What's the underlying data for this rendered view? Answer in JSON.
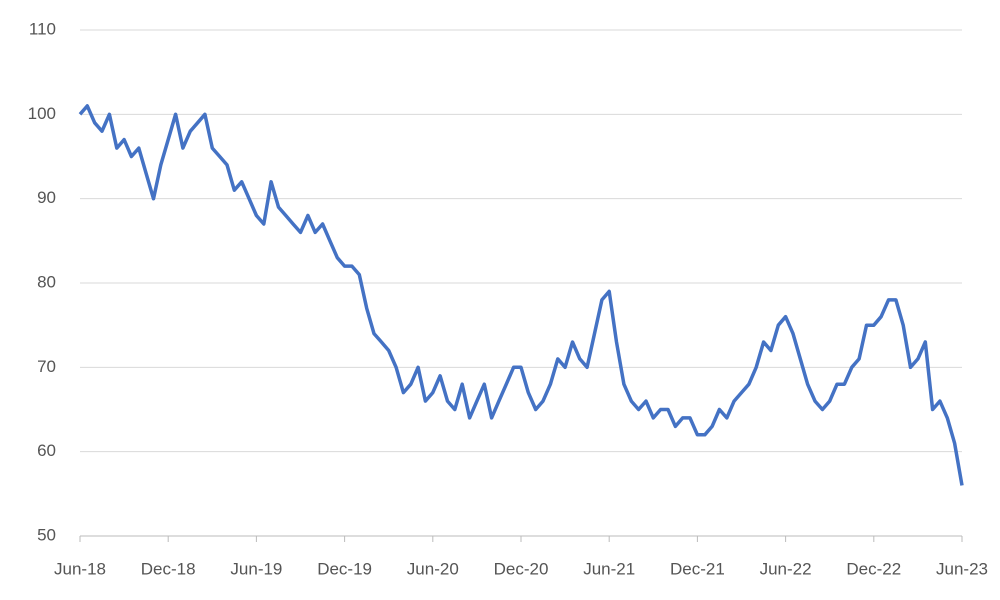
{
  "chart_data": {
    "type": "line",
    "categories": [
      "Jun-18",
      null,
      null,
      null,
      null,
      null,
      null,
      null,
      null,
      null,
      null,
      null,
      "Dec-18",
      null,
      null,
      null,
      null,
      null,
      null,
      null,
      null,
      null,
      null,
      null,
      "Jun-19",
      null,
      null,
      null,
      null,
      null,
      null,
      null,
      null,
      null,
      null,
      null,
      "Dec-19",
      null,
      null,
      null,
      null,
      null,
      null,
      null,
      null,
      null,
      null,
      null,
      "Jun-20",
      null,
      null,
      null,
      null,
      null,
      null,
      null,
      null,
      null,
      null,
      null,
      "Dec-20",
      null,
      null,
      null,
      null,
      null,
      null,
      null,
      null,
      null,
      null,
      null,
      "Jun-21",
      null,
      null,
      null,
      null,
      null,
      null,
      null,
      null,
      null,
      null,
      null,
      "Dec-21",
      null,
      null,
      null,
      null,
      null,
      null,
      null,
      null,
      null,
      null,
      null,
      "Jun-22",
      null,
      null,
      null,
      null,
      null,
      null,
      null,
      null,
      null,
      null,
      null,
      "Dec-22",
      null,
      null,
      null,
      null,
      null,
      null,
      null,
      null,
      null,
      null,
      null,
      "Jun-23"
    ],
    "values": [
      100,
      101,
      99,
      98,
      100,
      96,
      97,
      95,
      96,
      93,
      90,
      94,
      97,
      100,
      96,
      98,
      99,
      100,
      96,
      95,
      94,
      91,
      92,
      90,
      88,
      87,
      92,
      89,
      88,
      87,
      86,
      88,
      86,
      87,
      85,
      83,
      82,
      82,
      81,
      77,
      74,
      73,
      72,
      70,
      67,
      68,
      70,
      66,
      67,
      69,
      66,
      65,
      68,
      64,
      66,
      68,
      64,
      66,
      68,
      70,
      70,
      67,
      65,
      66,
      68,
      71,
      70,
      73,
      71,
      70,
      74,
      78,
      79,
      73,
      68,
      66,
      65,
      66,
      64,
      65,
      65,
      63,
      64,
      64,
      62,
      62,
      63,
      65,
      64,
      66,
      67,
      68,
      70,
      73,
      72,
      75,
      76,
      74,
      71,
      68,
      66,
      65,
      66,
      68,
      68,
      70,
      71,
      75,
      75,
      76,
      78,
      78,
      75,
      70,
      71,
      73,
      65,
      66,
      64,
      61,
      56
    ],
    "color": "#4472c4",
    "ylim": [
      50,
      110
    ],
    "yticks": [
      50,
      60,
      70,
      80,
      90,
      100,
      110
    ],
    "grid": true
  }
}
